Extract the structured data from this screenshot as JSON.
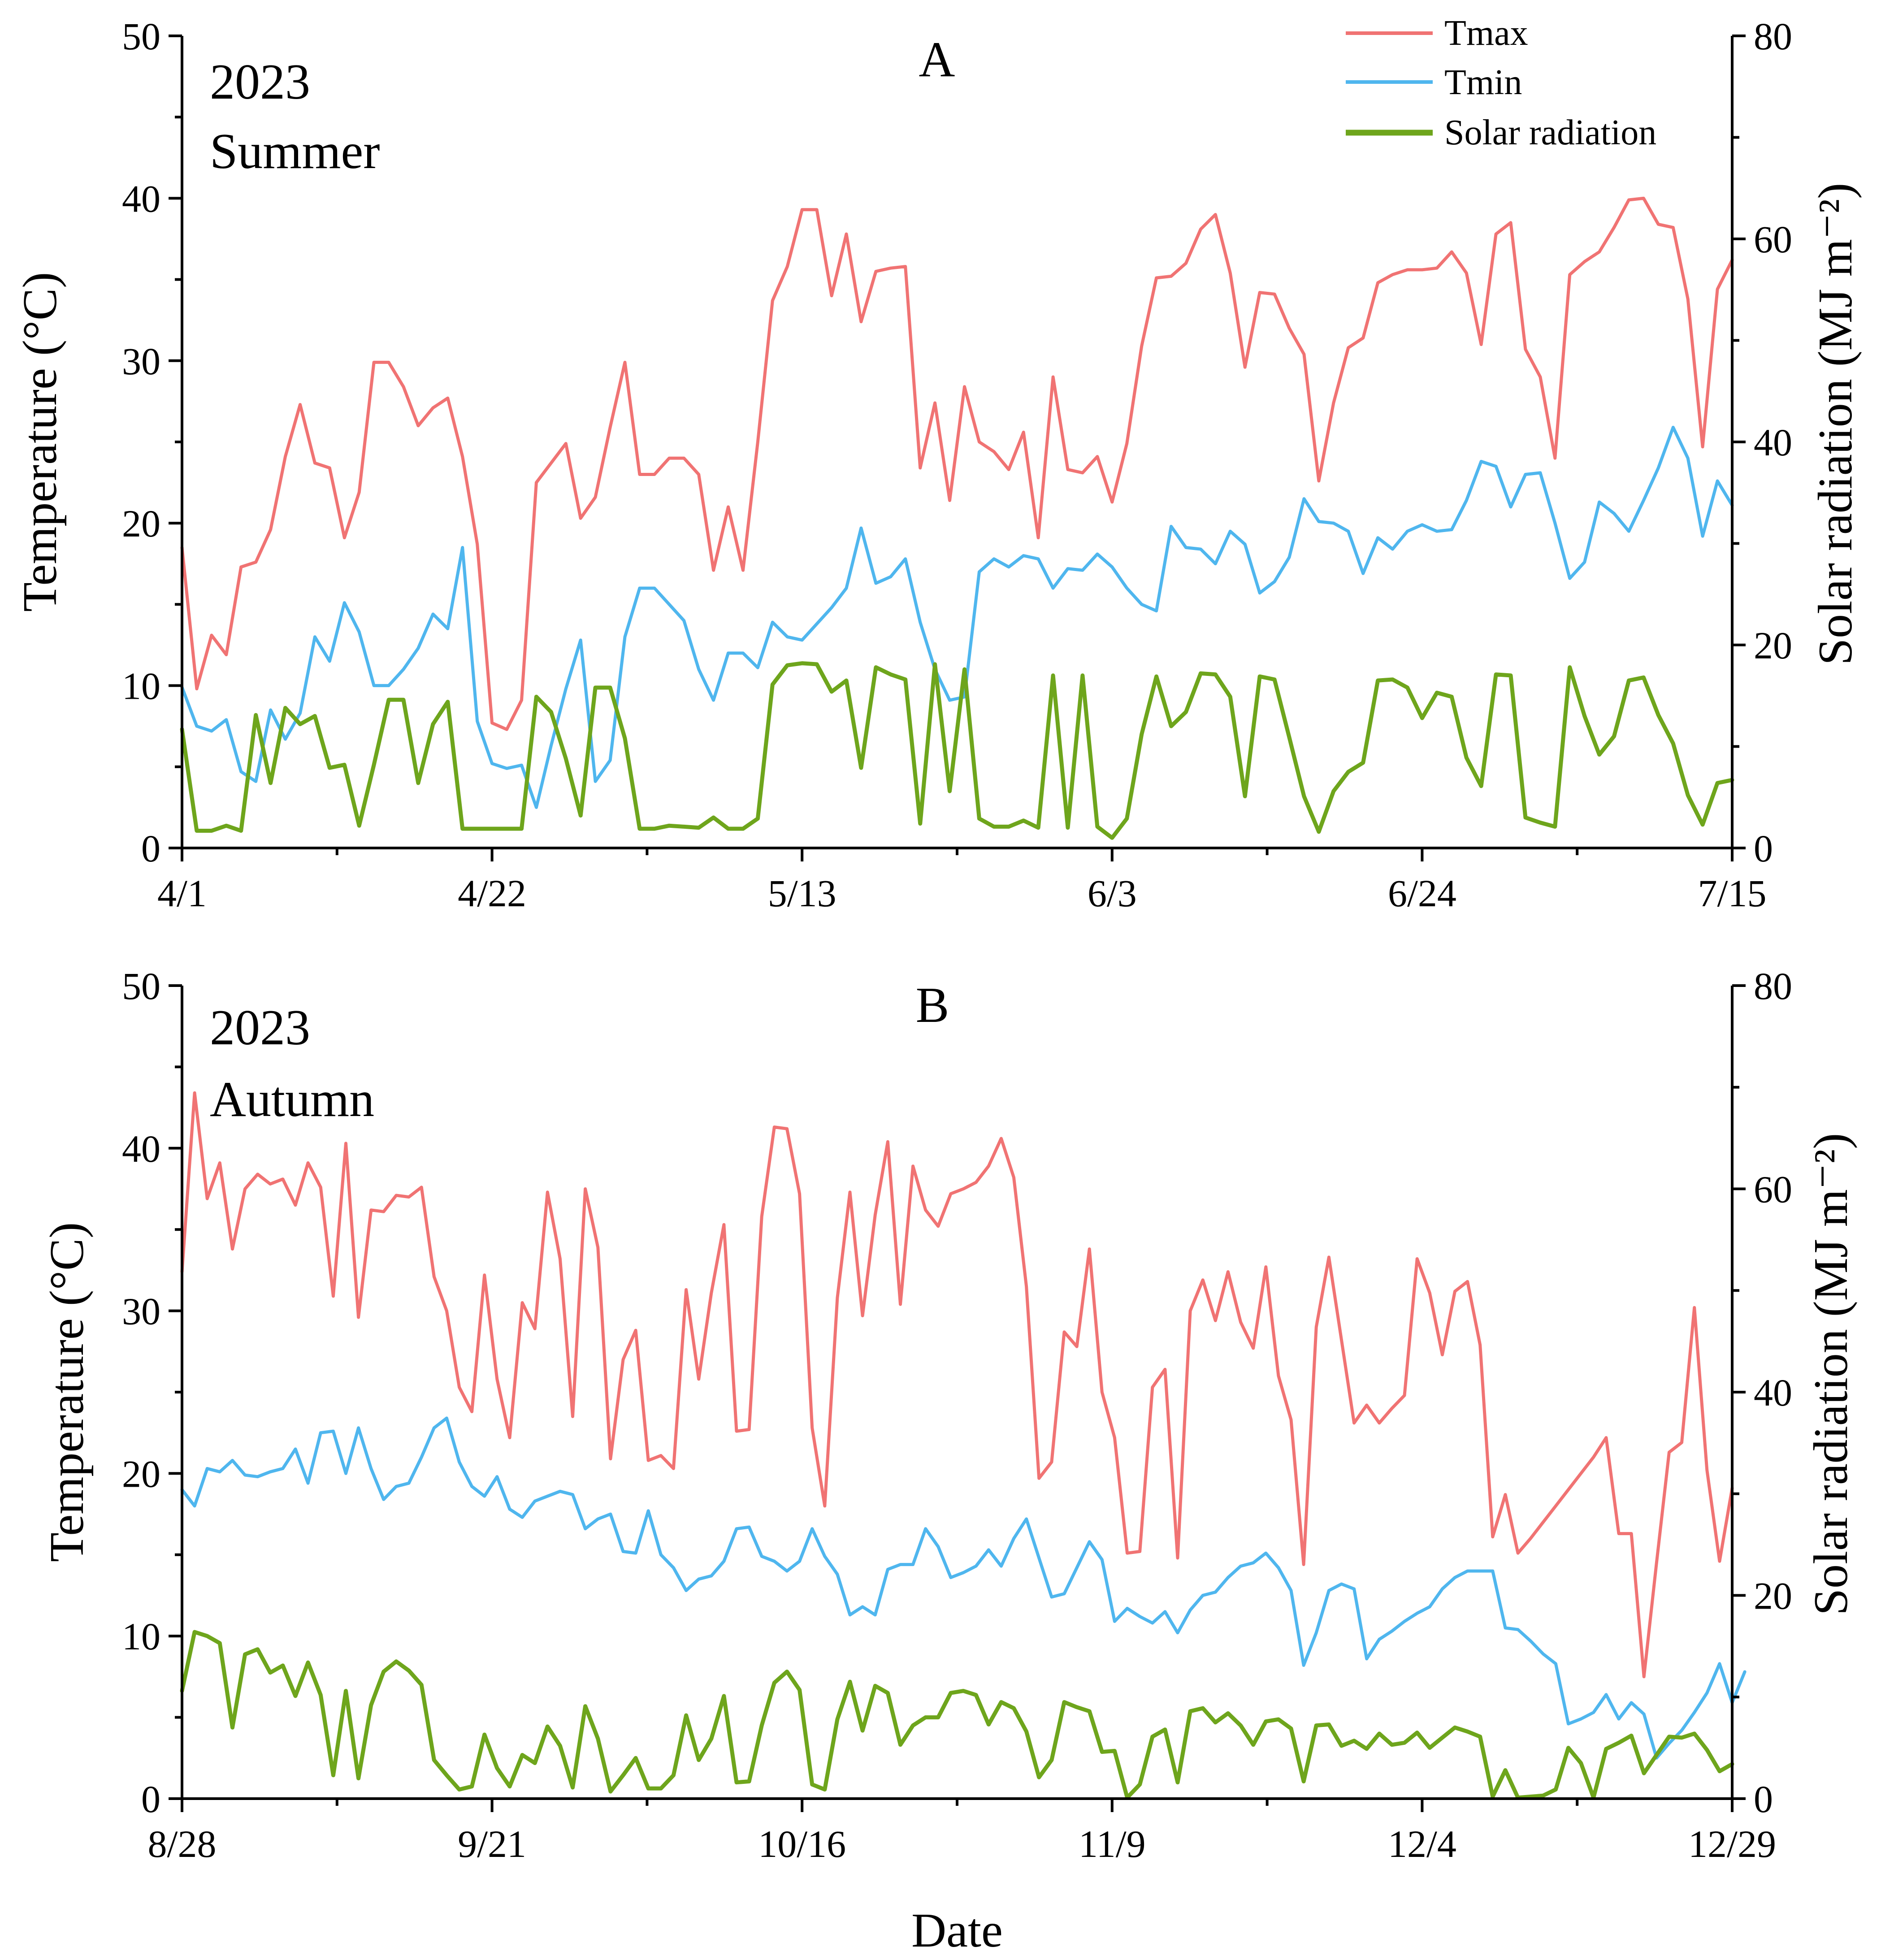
{
  "chart_data": [
    {
      "type": "line",
      "panel_letter": "A",
      "year_label": "2023",
      "season_label": "Summer",
      "x_tick_labels": [
        "4/1",
        "4/22",
        "5/13",
        "6/3",
        "6/24",
        "7/15"
      ],
      "x_days": 105,
      "ylabel_left": "Temperature (°C)",
      "ylim_left": [
        0,
        50
      ],
      "yticks_left": [
        0,
        10,
        20,
        30,
        40,
        50
      ],
      "ylabel_right": "Solar radiation (MJ m⁻²)",
      "ylim_right": [
        0,
        80
      ],
      "yticks_right": [
        0,
        20,
        40,
        60,
        80
      ],
      "series": [
        {
          "name": "Tmax",
          "axis": "left",
          "color": "#f07373",
          "values": [
            18.5,
            9.8,
            13.1,
            11.9,
            17.3,
            17.6,
            19.6,
            24.1,
            27.3,
            23.7,
            23.4,
            19.1,
            21.9,
            29.9,
            29.9,
            28.4,
            26.0,
            27.1,
            27.7,
            24.1,
            18.7,
            7.7,
            7.3,
            9.1,
            22.5,
            23.7,
            24.9,
            20.3,
            21.6,
            25.9,
            29.9,
            23.0,
            23.0,
            24.0,
            24.0,
            23.0,
            17.1,
            21.0,
            17.1,
            25.0,
            33.7,
            35.8,
            39.3,
            39.3,
            34.0,
            37.8,
            32.4,
            35.5,
            35.7,
            35.8,
            23.4,
            27.4,
            21.4,
            28.4,
            25.0,
            24.4,
            23.3,
            25.6,
            19.1,
            29.0,
            23.3,
            23.1,
            24.1,
            21.3,
            24.9,
            30.9,
            35.1,
            35.2,
            36.0,
            38.1,
            39.0,
            35.4,
            29.6,
            34.2,
            34.1,
            32.0,
            30.4,
            22.6,
            27.4,
            30.8,
            31.4,
            34.8,
            35.3,
            35.6,
            35.6,
            35.7,
            36.7,
            35.4,
            31.0,
            37.8,
            38.5,
            30.7,
            29.0,
            24.0,
            35.3,
            36.1,
            36.7,
            38.2,
            39.9,
            40.0,
            38.4,
            38.2,
            33.8,
            24.7,
            34.4,
            36.2
          ]
        },
        {
          "name": "Tmin",
          "axis": "left",
          "color": "#4fb6ee",
          "values": [
            9.9,
            7.5,
            7.2,
            7.9,
            4.7,
            4.1,
            8.5,
            6.7,
            8.3,
            13.0,
            11.5,
            15.1,
            13.3,
            10.0,
            10.0,
            11.0,
            12.3,
            14.4,
            13.5,
            18.5,
            7.8,
            5.2,
            4.9,
            5.1,
            2.5,
            6.3,
            9.8,
            12.8,
            4.1,
            5.4,
            13.0,
            16.0,
            16.0,
            15.0,
            14.0,
            11.0,
            9.1,
            12.0,
            12.0,
            11.1,
            13.9,
            13.0,
            12.8,
            13.8,
            14.8,
            16.0,
            19.7,
            16.3,
            16.7,
            17.8,
            13.9,
            11.0,
            9.1,
            9.3,
            17.0,
            17.8,
            17.3,
            18.0,
            17.8,
            16.0,
            17.2,
            17.1,
            18.1,
            17.3,
            16.0,
            15.0,
            14.6,
            19.8,
            18.5,
            18.4,
            17.5,
            19.5,
            18.7,
            15.7,
            16.4,
            17.9,
            21.5,
            20.1,
            20.0,
            19.5,
            16.9,
            19.1,
            18.4,
            19.5,
            19.9,
            19.5,
            19.6,
            21.4,
            23.8,
            23.5,
            21.0,
            23.0,
            23.1,
            20.0,
            16.6,
            17.6,
            21.3,
            20.6,
            19.5,
            21.4,
            23.4,
            25.9,
            24.0,
            19.2,
            22.6,
            21.1
          ]
        },
        {
          "name": "Solar radiation",
          "axis": "right",
          "color": "#6ea51c",
          "values": [
            11.7,
            1.7,
            1.7,
            2.2,
            1.7,
            13.1,
            6.4,
            13.8,
            12.2,
            13.0,
            7.9,
            8.2,
            2.2,
            8.2,
            14.6,
            14.6,
            6.4,
            12.2,
            14.4,
            1.9,
            1.9,
            1.9,
            1.9,
            1.9,
            14.9,
            13.4,
            8.8,
            3.2,
            15.8,
            15.8,
            10.8,
            1.9,
            1.9,
            2.2,
            2.1,
            2.0,
            3.0,
            1.9,
            1.9,
            2.9,
            16.1,
            18.0,
            18.2,
            18.1,
            15.4,
            16.5,
            7.9,
            17.8,
            17.1,
            16.6,
            2.4,
            18.1,
            5.6,
            17.6,
            2.9,
            2.1,
            2.1,
            2.7,
            2.0,
            17.0,
            2.0,
            17.0,
            2.1,
            1.0,
            2.9,
            11.2,
            16.9,
            12.0,
            13.4,
            17.2,
            17.1,
            14.9,
            5.1,
            16.9,
            16.6,
            10.9,
            5.1,
            1.6,
            5.6,
            7.5,
            8.4,
            16.5,
            16.6,
            15.8,
            12.8,
            15.3,
            14.9,
            8.9,
            6.1,
            17.1,
            17.0,
            3.0,
            2.5,
            2.1,
            17.8,
            13.0,
            9.2,
            11.0,
            16.5,
            16.8,
            13.1,
            10.3,
            5.2,
            2.3,
            6.4,
            6.7
          ]
        }
      ]
    },
    {
      "type": "line",
      "panel_letter": "B",
      "year_label": "2023",
      "season_label": "Autumn",
      "x_tick_labels": [
        "8/28",
        "9/21",
        "10/16",
        "11/9",
        "12/4",
        "12/29"
      ],
      "x_days": 123,
      "xlabel": "Date",
      "ylabel_left": "Temperature (°C)",
      "ylim_left": [
        0,
        50
      ],
      "yticks_left": [
        0,
        10,
        20,
        30,
        40,
        50
      ],
      "ylabel_right": "Solar radiation (MJ m⁻²)",
      "ylim_right": [
        0,
        80
      ],
      "yticks_right": [
        0,
        20,
        40,
        60,
        80
      ],
      "series": [
        {
          "name": "Tmax",
          "axis": "left",
          "color": "#f07373",
          "values": [
            32.4,
            43.4,
            36.9,
            39.1,
            33.8,
            37.5,
            38.4,
            37.8,
            38.1,
            36.5,
            39.1,
            37.6,
            30.9,
            40.3,
            29.6,
            36.2,
            36.1,
            37.1,
            37.0,
            37.6,
            32.1,
            30.0,
            25.3,
            23.8,
            32.2,
            25.8,
            22.2,
            30.5,
            28.9,
            37.3,
            33.2,
            23.5,
            37.5,
            33.9,
            20.9,
            27.0,
            28.8,
            20.8,
            21.1,
            20.3,
            31.3,
            25.8,
            31.1,
            35.3,
            22.6,
            22.7,
            35.8,
            41.3,
            41.2,
            37.2,
            22.8,
            18.0,
            30.8,
            37.3,
            29.7,
            35.9,
            40.4,
            30.4,
            38.9,
            36.2,
            35.2,
            37.2,
            37.5,
            37.9,
            38.9,
            40.6,
            38.2,
            31.5,
            19.7,
            20.7,
            28.7,
            27.8,
            33.8,
            25.0,
            22.2,
            15.1,
            15.2,
            25.3,
            26.4,
            14.8,
            30.0,
            31.9,
            29.4,
            32.4,
            29.3,
            27.7,
            32.7,
            26.0,
            23.3,
            14.4,
            29.0,
            33.3,
            28.2,
            23.1,
            24.2,
            23.1,
            24.0,
            24.8,
            33.2,
            31.1,
            27.3,
            31.2,
            31.8,
            27.9,
            16.1,
            18.7,
            15.1,
            16.0,
            17.0,
            18.0,
            19.0,
            20.0,
            21.0,
            22.2,
            16.3,
            16.3,
            7.5,
            14.5,
            21.3,
            21.9,
            30.2,
            20.2,
            14.6,
            19.1
          ]
        },
        {
          "name": "Tmin",
          "axis": "left",
          "color": "#4fb6ee",
          "values": [
            19.0,
            18.0,
            20.3,
            20.1,
            20.8,
            19.9,
            19.8,
            20.1,
            20.3,
            21.5,
            19.4,
            22.5,
            22.6,
            20.0,
            22.8,
            20.3,
            18.4,
            19.2,
            19.4,
            21.0,
            22.8,
            23.4,
            20.7,
            19.2,
            18.6,
            19.8,
            17.8,
            17.3,
            18.3,
            18.6,
            18.9,
            18.7,
            16.6,
            17.2,
            17.5,
            15.2,
            15.1,
            17.7,
            15.0,
            14.2,
            12.8,
            13.5,
            13.7,
            14.6,
            16.6,
            16.7,
            14.9,
            14.6,
            14.0,
            14.6,
            16.6,
            14.9,
            13.8,
            11.3,
            11.8,
            11.3,
            14.1,
            14.4,
            14.4,
            16.6,
            15.5,
            13.6,
            13.9,
            14.3,
            15.3,
            14.3,
            16.0,
            17.2,
            14.8,
            12.4,
            12.6,
            14.2,
            15.8,
            14.7,
            10.9,
            11.7,
            11.2,
            10.8,
            11.5,
            10.2,
            11.6,
            12.5,
            12.7,
            13.6,
            14.3,
            14.5,
            15.1,
            14.2,
            12.8,
            8.2,
            10.2,
            12.8,
            13.2,
            12.9,
            8.6,
            9.8,
            10.3,
            10.9,
            11.4,
            11.8,
            12.9,
            13.6,
            14.0,
            14.0,
            14.0,
            10.5,
            10.4,
            9.7,
            8.9,
            8.3,
            4.6,
            4.9,
            5.3,
            6.4,
            4.9,
            5.9,
            5.2,
            2.5,
            3.4,
            4.2,
            5.3,
            6.5,
            8.3,
            5.9,
            7.8
          ]
        },
        {
          "name": "Solar radiation",
          "axis": "right",
          "color": "#6ea51c",
          "values": [
            10.6,
            16.4,
            16.0,
            15.3,
            7.0,
            14.2,
            14.7,
            12.4,
            13.1,
            10.1,
            13.4,
            10.2,
            2.3,
            10.6,
            2.0,
            9.2,
            12.5,
            13.5,
            12.6,
            11.2,
            3.8,
            2.3,
            0.9,
            1.2,
            6.3,
            3.0,
            1.2,
            4.3,
            3.5,
            7.1,
            5.2,
            1.1,
            9.1,
            5.9,
            0.7,
            2.3,
            4.0,
            1.0,
            1.0,
            2.3,
            8.2,
            3.8,
            5.9,
            10.1,
            1.6,
            1.7,
            7.2,
            11.4,
            12.5,
            10.7,
            1.4,
            0.9,
            7.8,
            11.5,
            6.7,
            11.1,
            10.4,
            5.3,
            7.2,
            8.0,
            8.0,
            10.4,
            10.6,
            10.2,
            7.3,
            9.5,
            8.9,
            6.6,
            2.1,
            3.8,
            9.5,
            9.0,
            8.6,
            4.6,
            4.7,
            0.1,
            1.4,
            6.1,
            6.8,
            1.6,
            8.6,
            8.9,
            7.5,
            8.4,
            7.2,
            5.3,
            7.6,
            7.8,
            6.9,
            1.7,
            7.2,
            7.3,
            5.2,
            5.7,
            4.9,
            6.4,
            5.3,
            5.5,
            6.5,
            5.0,
            6.0,
            7.0,
            6.6,
            6.1,
            0.2,
            2.8,
            0.1,
            0.2,
            0.3,
            0.9,
            5.0,
            3.5,
            0.1,
            4.9,
            5.5,
            6.2,
            2.5,
            4.3,
            6.1,
            6.0,
            6.4,
            4.8,
            2.7,
            3.4
          ]
        }
      ]
    }
  ]
}
